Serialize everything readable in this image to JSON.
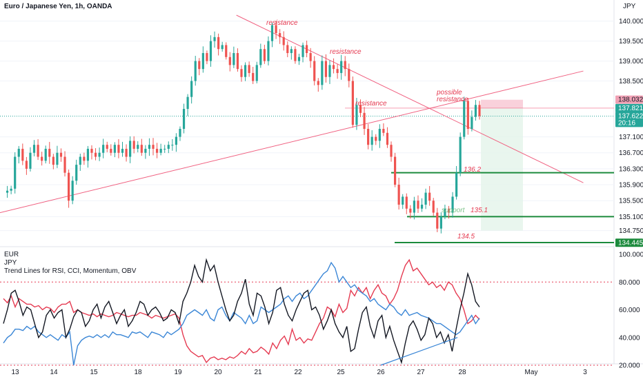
{
  "header": {
    "symbol": "Euro / Japanese Yen, 1h, OANDA",
    "currency": "JPY"
  },
  "indicator": {
    "line1": "EUR",
    "line2": "JPY",
    "line3": "Trend Lines for RSI, CCI, Momentum, OBV"
  },
  "colors": {
    "bull": "#26a69a",
    "bear": "#ef5350",
    "resistance": "#f06080",
    "level_line": "#1b8a3c",
    "support_text": "#7cc28a",
    "red_osc": "#e53950",
    "blue_osc": "#3a86d6",
    "black_osc": "#131722",
    "dotted": "#e53950"
  },
  "price_axis": [
    "140.000",
    "139.500",
    "139.000",
    "138.500",
    "138.032",
    "137.821",
    "137.622",
    "137.100",
    "136.700",
    "136.300",
    "135.900",
    "135.500",
    "135.100",
    "134.750",
    "134.445"
  ],
  "price_badges": [
    {
      "value": "138.032",
      "color": "#f0a0b4",
      "text_color": "#131722"
    },
    {
      "value": "137.821",
      "color": "#26a69a",
      "text_color": "#ffffff"
    },
    {
      "value": "137.622",
      "sub": "20:16",
      "color": "#26a69a",
      "text_color": "#ffffff"
    },
    {
      "value": "134.445",
      "color": "#1b8a3c",
      "text_color": "#ffffff"
    }
  ],
  "osc_axis": [
    "100.000",
    "80.000",
    "60.000",
    "40.000",
    "20.000"
  ],
  "date_axis": [
    "13",
    "14",
    "15",
    "18",
    "19",
    "20",
    "21",
    "22",
    "25",
    "26",
    "27",
    "28",
    "May",
    "3"
  ],
  "annotations": {
    "res1": "resistance",
    "res2": "resistance",
    "res3": "resistance",
    "res4a": "possible",
    "res4b": "resistance",
    "support": "support",
    "lvl1": "136.2",
    "lvl2": "135.1",
    "lvl3": "134.5"
  },
  "chart_data": {
    "type": "candlestick",
    "instrument": "EURJPY",
    "timeframe": "1h",
    "y_range": [
      134.45,
      140.15
    ],
    "x_labels": [
      "13",
      "14",
      "15",
      "18",
      "19",
      "20",
      "21",
      "22",
      "25",
      "26",
      "27",
      "28",
      "May",
      "3"
    ],
    "close_path": [
      135.7,
      135.75,
      135.8,
      136.6,
      136.8,
      136.5,
      136.3,
      136.7,
      136.9,
      136.6,
      136.5,
      136.8,
      136.6,
      136.4,
      136.7,
      136.6,
      136.2,
      135.5,
      136.0,
      136.4,
      136.6,
      136.5,
      136.8,
      136.7,
      136.6,
      136.7,
      136.9,
      136.8,
      136.7,
      136.9,
      136.7,
      136.8,
      136.6,
      137.0,
      136.8,
      136.9,
      136.7,
      136.8,
      136.9,
      136.8,
      136.7,
      136.8,
      136.8,
      136.9,
      136.9,
      137.1,
      137.3,
      137.8,
      138.1,
      138.5,
      139.0,
      138.8,
      139.2,
      139.0,
      139.5,
      139.6,
      139.3,
      139.4,
      139.1,
      138.9,
      139.2,
      138.8,
      138.6,
      138.9,
      138.7,
      138.5,
      138.9,
      139.3,
      139.0,
      139.5,
      139.9,
      139.7,
      139.6,
      139.4,
      139.2,
      139.3,
      139.0,
      139.1,
      139.4,
      139.2,
      139.0,
      138.5,
      138.4,
      139.0,
      138.6,
      138.9,
      138.8,
      138.7,
      139.0,
      138.8,
      138.5,
      137.4,
      137.9,
      137.7,
      137.3,
      136.9,
      137.1,
      137.0,
      137.3,
      137.2,
      136.9,
      136.6,
      135.9,
      135.4,
      135.6,
      135.3,
      135.2,
      135.5,
      135.3,
      135.4,
      135.7,
      135.5,
      135.2,
      134.8,
      135.1,
      135.3,
      135.2,
      135.6,
      136.2,
      137.1,
      138.0,
      137.3,
      137.6,
      137.9,
      137.62
    ],
    "trendlines": [
      {
        "label": "resistance",
        "from": [
          0.385,
          140.15
        ],
        "to": [
          0.95,
          135.95
        ]
      },
      {
        "label": "rising",
        "from": [
          0.0,
          135.2
        ],
        "to": [
          0.95,
          138.75
        ]
      }
    ],
    "levels": [
      {
        "label": "136.2",
        "value": 136.2
      },
      {
        "label": "135.1",
        "value": 135.1
      },
      {
        "label": "134.5",
        "value": 134.45
      }
    ],
    "position_box": {
      "entry": 137.82,
      "target": 138.03,
      "stop": 134.75
    },
    "oscillator": {
      "y_range": [
        20,
        100
      ],
      "series": [
        {
          "color": "red",
          "values": [
            68,
            65,
            70,
            62,
            68,
            66,
            64,
            64,
            62,
            63,
            60,
            62,
            61,
            58,
            62,
            64,
            64,
            66,
            58,
            60,
            58,
            57,
            56,
            57,
            55,
            57,
            56,
            55,
            56,
            58,
            57,
            56,
            55,
            56,
            56,
            58,
            57,
            56,
            54,
            56,
            55,
            54,
            55,
            56,
            57,
            54,
            42,
            34,
            30,
            28,
            26,
            27,
            22,
            25,
            26,
            24,
            25,
            24,
            26,
            25,
            27,
            30,
            28,
            32,
            29,
            30,
            33,
            31,
            28,
            36,
            32,
            38,
            41,
            35,
            46,
            38,
            40,
            36,
            39,
            38,
            44,
            50,
            54,
            62,
            60,
            55,
            64,
            58,
            61,
            74,
            70,
            76,
            72,
            76,
            68,
            74,
            78,
            72,
            70,
            64,
            68,
            74,
            84,
            92,
            96,
            88,
            90,
            86,
            82,
            78,
            80,
            76,
            78,
            74,
            80,
            78,
            72,
            68,
            60,
            50,
            52,
            56,
            53
          ]
        },
        {
          "color": "blue",
          "values": [
            36,
            40,
            42,
            46,
            46,
            45,
            48,
            46,
            48,
            44,
            42,
            40,
            42,
            40,
            38,
            42,
            40,
            44,
            20,
            34,
            38,
            40,
            41,
            40,
            42,
            40,
            42,
            40,
            44,
            42,
            42,
            41,
            40,
            44,
            43,
            44,
            42,
            40,
            44,
            43,
            42,
            40,
            44,
            42,
            44,
            46,
            50,
            56,
            58,
            60,
            58,
            56,
            60,
            54,
            52,
            60,
            62,
            56,
            52,
            58,
            56,
            54,
            50,
            56,
            50,
            52,
            62,
            60,
            58,
            60,
            62,
            64,
            68,
            70,
            66,
            70,
            72,
            68,
            70,
            74,
            78,
            82,
            86,
            88,
            94,
            90,
            80,
            84,
            80,
            76,
            78,
            74,
            72,
            70,
            66,
            68,
            64,
            62,
            60,
            64,
            62,
            58,
            56,
            60,
            56,
            57,
            58,
            56,
            55,
            54,
            52,
            50,
            50,
            48,
            46,
            44,
            42,
            44,
            48,
            52,
            56,
            50,
            54
          ]
        },
        {
          "color": "black",
          "values": [
            50,
            60,
            72,
            74,
            66,
            56,
            62,
            60,
            50,
            40,
            44,
            56,
            60,
            54,
            58,
            60,
            40,
            46,
            55,
            60,
            58,
            48,
            52,
            60,
            64,
            54,
            62,
            66,
            58,
            50,
            56,
            60,
            48,
            52,
            58,
            66,
            64,
            56,
            60,
            62,
            58,
            52,
            54,
            60,
            58,
            50,
            66,
            72,
            80,
            92,
            84,
            80,
            96,
            88,
            92,
            80,
            70,
            60,
            52,
            56,
            66,
            72,
            82,
            64,
            56,
            72,
            70,
            62,
            50,
            58,
            74,
            76,
            64,
            56,
            52,
            60,
            66,
            72,
            74,
            60,
            62,
            56,
            46,
            52,
            60,
            50,
            44,
            40,
            48,
            30,
            32,
            46,
            58,
            62,
            48,
            40,
            52,
            56,
            40,
            48,
            38,
            30,
            22,
            36,
            48,
            52,
            46,
            38,
            42,
            54,
            50,
            40,
            44,
            36,
            42,
            30,
            46,
            60,
            72,
            86,
            78,
            66,
            62
          ]
        }
      ],
      "trendline": {
        "from": [
          0.62,
          20
        ],
        "to": [
          0.745,
          40
        ]
      },
      "dotted_levels": [
        80,
        20
      ]
    }
  }
}
